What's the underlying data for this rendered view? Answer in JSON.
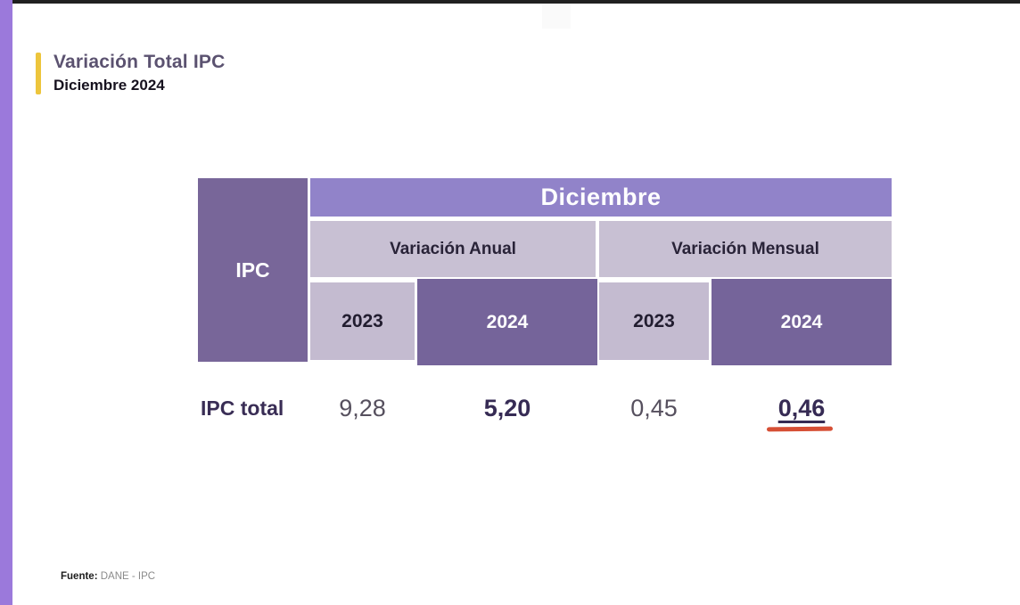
{
  "slide": {
    "title": "Variación Total IPC",
    "subtitle": "Diciembre 2024",
    "source_label": "Fuente:",
    "source_value": "DANE - IPC"
  },
  "table": {
    "corner_label": "IPC",
    "month_header": "Diciembre",
    "groups": [
      {
        "label": "Variación Anual",
        "years": [
          "2023",
          "2024"
        ]
      },
      {
        "label": "Variación Mensual",
        "years": [
          "2023",
          "2024"
        ]
      }
    ],
    "row": {
      "label": "IPC total",
      "values": [
        "9,28",
        "5,20",
        "0,45",
        "0,46"
      ]
    }
  },
  "colors": {
    "accent_yellow": "#edc53c",
    "left_bar_purple": "#9b79db",
    "dark_purple_cell": "#786699",
    "month_band_purple": "#9183c9",
    "light_lavender_cell": "#c8c0d3",
    "highlight_red": "#d64f35",
    "title_purple": "#5b5270",
    "value_dark": "#362b54",
    "value_gray": "#56505e"
  },
  "chart_data": {
    "type": "table",
    "title": "Variación Total IPC — Diciembre 2024",
    "column_groups": [
      "Variación Anual",
      "Variación Mensual"
    ],
    "columns": [
      "Variación Anual 2023",
      "Variación Anual 2024",
      "Variación Mensual 2023",
      "Variación Mensual 2024"
    ],
    "rows": [
      {
        "label": "IPC total",
        "values": [
          9.28,
          5.2,
          0.45,
          0.46
        ]
      }
    ],
    "highlighted_cell": {
      "row": "IPC total",
      "column": "Variación Mensual 2024",
      "value": 0.46
    },
    "source": "DANE - IPC"
  }
}
